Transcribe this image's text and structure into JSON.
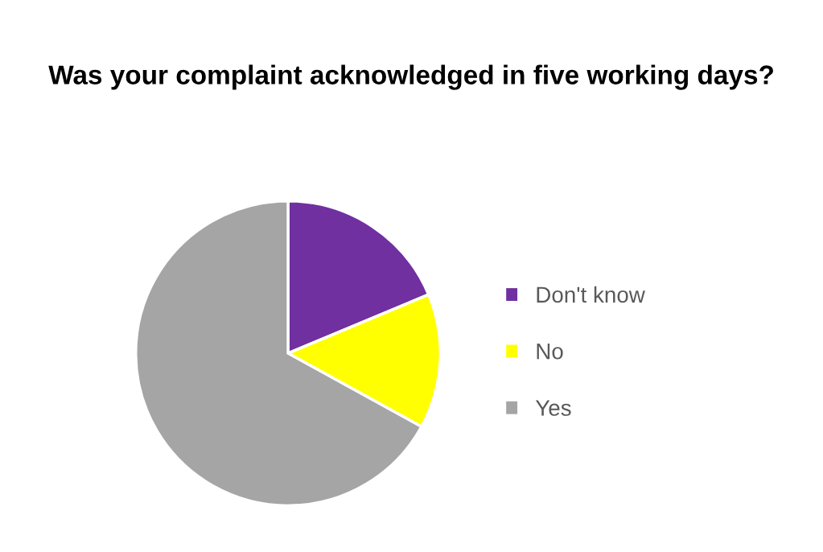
{
  "chart_data": {
    "type": "pie",
    "title": "Was your complaint acknowledged in five working days?",
    "categories": [
      "Don't know",
      "No",
      "Yes"
    ],
    "values": [
      18.7,
      14.3,
      67.0
    ],
    "colors": [
      "#7030a0",
      "#ffff00",
      "#a5a5a5"
    ],
    "legend": "right"
  }
}
